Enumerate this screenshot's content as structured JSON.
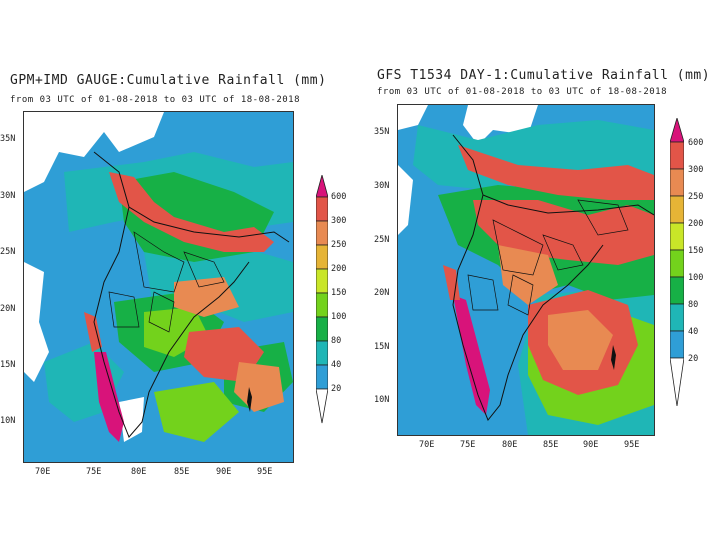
{
  "left_panel": {
    "title": "GPM+IMD GAUGE:Cumulative Rainfall (mm)",
    "subtitle": "from 03 UTC of 01-08-2018 to 03 UTC of 18-08-2018",
    "lat_labels": [
      "35N",
      "30N",
      "25N",
      "20N",
      "15N",
      "10N"
    ],
    "lon_labels": [
      "70E",
      "75E",
      "80E",
      "85E",
      "90E",
      "95E"
    ],
    "colorbar_labels": [
      "600",
      "300",
      "250",
      "200",
      "150",
      "100",
      "80",
      "40",
      "20"
    ]
  },
  "right_panel": {
    "title": "GFS T1534 DAY-1:Cumulative Rainfall (mm)",
    "subtitle": "from 03 UTC of 01-08-2018 to 03 UTC of 18-08-2018",
    "lat_labels": [
      "35N",
      "30N",
      "25N",
      "20N",
      "15N",
      "10N"
    ],
    "lon_labels": [
      "70E",
      "75E",
      "80E",
      "85E",
      "90E",
      "95E"
    ],
    "colorbar_labels": [
      "600",
      "300",
      "250",
      "200",
      "150",
      "100",
      "80",
      "40",
      "20"
    ]
  },
  "colors": {
    "20-40": "#2f9ed6",
    "40-80": "#1fb6b6",
    "80-100": "#17b046",
    "100-150": "#73d21c",
    "150-200": "#c9e628",
    "200-250": "#e6b436",
    "250-300": "#e88a52",
    "300-600": "#e25548",
    "600+": "#d8137a",
    "land": "#ffffff",
    "boundary": "#111111"
  }
}
